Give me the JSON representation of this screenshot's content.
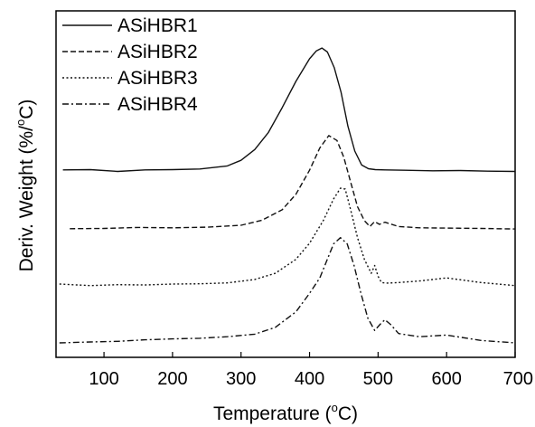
{
  "chart_data": {
    "type": "line",
    "xlabel": "Temperature (°C)",
    "ylabel": "Deriv. Weight (%/°C)",
    "xlim": [
      30,
      700
    ],
    "ylim": [
      0,
      1
    ],
    "x_ticks": [
      "100",
      "200",
      "300",
      "400",
      "500",
      "600",
      "700"
    ],
    "y_ticks_shown": false,
    "legend_position": "top-left",
    "series": [
      {
        "name": "ASiHBR1",
        "style": "solid",
        "x": [
          40,
          80,
          120,
          160,
          200,
          240,
          280,
          300,
          320,
          340,
          360,
          380,
          400,
          410,
          418,
          426,
          436,
          446,
          456,
          466,
          476,
          486,
          496,
          510,
          540,
          580,
          620,
          660,
          700
        ],
        "y": [
          0.559,
          0.56,
          0.554,
          0.559,
          0.56,
          0.562,
          0.572,
          0.59,
          0.625,
          0.68,
          0.76,
          0.845,
          0.918,
          0.944,
          0.953,
          0.94,
          0.89,
          0.81,
          0.7,
          0.62,
          0.575,
          0.563,
          0.56,
          0.559,
          0.558,
          0.556,
          0.557,
          0.555,
          0.554
        ]
      },
      {
        "name": "ASiHBR2",
        "style": "dashed",
        "x": [
          50,
          100,
          150,
          200,
          250,
          300,
          330,
          360,
          380,
          400,
          415,
          428,
          440,
          450,
          460,
          470,
          480,
          488,
          495,
          502,
          510,
          530,
          560,
          600,
          650,
          700
        ],
        "y": [
          0.369,
          0.37,
          0.373,
          0.372,
          0.374,
          0.38,
          0.396,
          0.43,
          0.48,
          0.558,
          0.63,
          0.67,
          0.654,
          0.6,
          0.52,
          0.44,
          0.395,
          0.376,
          0.392,
          0.383,
          0.39,
          0.376,
          0.372,
          0.371,
          0.37,
          0.368
        ]
      },
      {
        "name": "ASiHBR3",
        "style": "dotted",
        "x": [
          35,
          80,
          120,
          160,
          200,
          240,
          280,
          320,
          350,
          380,
          400,
          420,
          435,
          445,
          452,
          460,
          470,
          480,
          490,
          495,
          500,
          505,
          512,
          530,
          560,
          600,
          650,
          700
        ],
        "y": [
          0.19,
          0.185,
          0.188,
          0.187,
          0.19,
          0.191,
          0.194,
          0.205,
          0.225,
          0.27,
          0.322,
          0.395,
          0.465,
          0.5,
          0.497,
          0.43,
          0.34,
          0.27,
          0.225,
          0.25,
          0.215,
          0.195,
          0.193,
          0.195,
          0.2,
          0.21,
          0.195,
          0.185
        ]
      },
      {
        "name": "ASiHBR4",
        "style": "dashdot",
        "x": [
          35,
          80,
          120,
          160,
          200,
          240,
          280,
          320,
          350,
          380,
          400,
          415,
          425,
          435,
          445,
          455,
          465,
          475,
          485,
          495,
          503,
          510,
          518,
          530,
          560,
          600,
          650,
          700
        ],
        "y": [
          0.0,
          0.003,
          0.005,
          0.01,
          0.013,
          0.015,
          0.02,
          0.028,
          0.05,
          0.1,
          0.16,
          0.21,
          0.265,
          0.32,
          0.34,
          0.32,
          0.25,
          0.16,
          0.08,
          0.04,
          0.06,
          0.075,
          0.06,
          0.03,
          0.02,
          0.025,
          0.008,
          0.0
        ]
      }
    ]
  },
  "text": {
    "xlabel_main": "Temperature (",
    "xlabel_sup": "o",
    "xlabel_tail": "C)",
    "ylabel_main": "Deriv. Weight (%/",
    "ylabel_sup": "o",
    "ylabel_tail": "C)"
  }
}
